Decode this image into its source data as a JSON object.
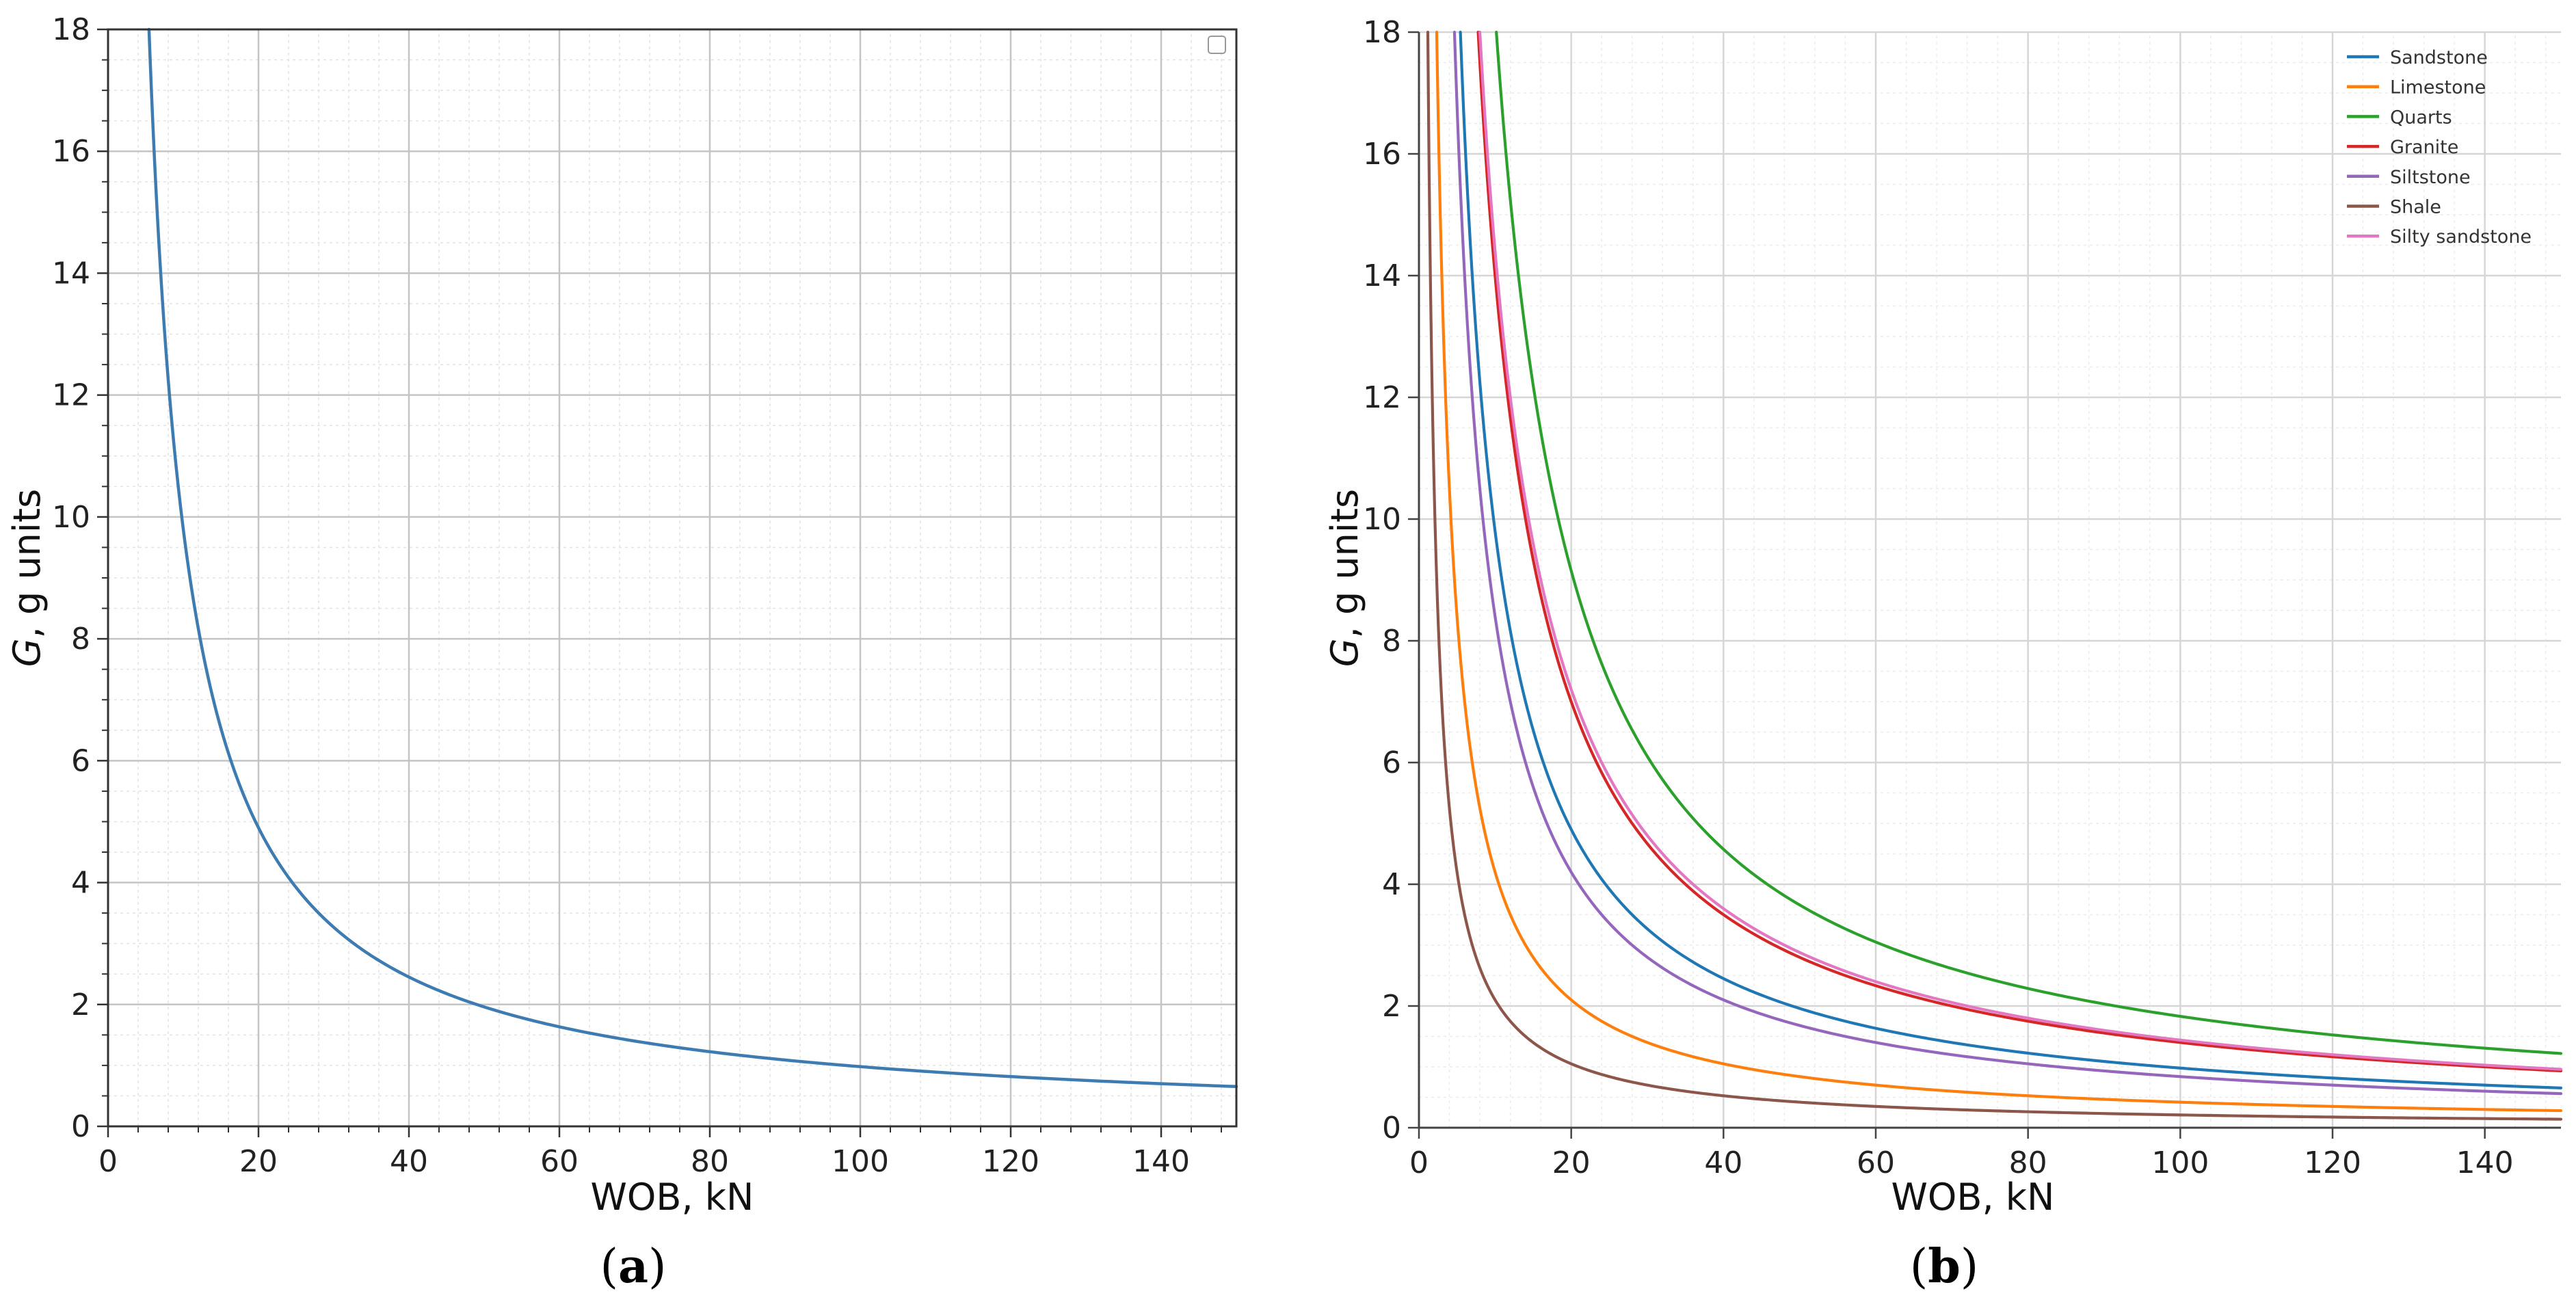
{
  "chart_data": [
    {
      "type": "line",
      "panel_label": "a",
      "title": "",
      "xlabel": "WOB, kN",
      "ylabel_italic": "G",
      "ylabel_rest": ", g units",
      "xlim": [
        0,
        150
      ],
      "ylim": [
        0,
        18
      ],
      "xticks": [
        0,
        20,
        40,
        60,
        80,
        100,
        120,
        140
      ],
      "yticks": [
        0,
        2,
        4,
        6,
        8,
        10,
        12,
        14,
        16,
        18
      ],
      "grid": true,
      "legend": "top-right (empty)",
      "series": [
        {
          "name": "",
          "color": "#3d7bb0",
          "k": 98,
          "points": [
            [
              5.4,
              18
            ],
            [
              6,
              16.3
            ],
            [
              7,
              14
            ],
            [
              8,
              12.25
            ],
            [
              10,
              9.8
            ],
            [
              12,
              8.17
            ],
            [
              15,
              6.53
            ],
            [
              20,
              4.9
            ],
            [
              25,
              3.92
            ],
            [
              30,
              3.27
            ],
            [
              40,
              2.45
            ],
            [
              50,
              1.96
            ],
            [
              60,
              1.63
            ],
            [
              80,
              1.23
            ],
            [
              100,
              0.98
            ],
            [
              120,
              0.82
            ],
            [
              150,
              0.65
            ]
          ]
        }
      ]
    },
    {
      "type": "line",
      "panel_label": "b",
      "title": "",
      "xlabel": "WOB, kN",
      "ylabel_italic": "G",
      "ylabel_rest": ", g units",
      "xlim": [
        0,
        150
      ],
      "ylim": [
        0,
        18
      ],
      "xticks": [
        0,
        20,
        40,
        60,
        80,
        100,
        120,
        140
      ],
      "yticks": [
        0,
        2,
        4,
        6,
        8,
        10,
        12,
        14,
        16,
        18
      ],
      "grid": true,
      "legend": "top-right",
      "series": [
        {
          "name": "Sandstone",
          "color": "#1f77b4",
          "k": 98,
          "points": [
            [
              5.4,
              18
            ],
            [
              10,
              9.8
            ],
            [
              20,
              4.9
            ],
            [
              40,
              2.45
            ],
            [
              60,
              1.63
            ],
            [
              80,
              1.23
            ],
            [
              100,
              0.98
            ],
            [
              150,
              0.65
            ]
          ]
        },
        {
          "name": "Limestone",
          "color": "#ff7f0e",
          "k": 42,
          "points": [
            [
              2.3,
              18
            ],
            [
              5,
              8.4
            ],
            [
              10,
              4.2
            ],
            [
              20,
              2.1
            ],
            [
              40,
              1.05
            ],
            [
              80,
              0.53
            ],
            [
              150,
              0.28
            ]
          ]
        },
        {
          "name": "Quarts",
          "color": "#2ca02c",
          "k": 183,
          "points": [
            [
              10.2,
              18
            ],
            [
              20,
              9.15
            ],
            [
              40,
              4.58
            ],
            [
              60,
              3.05
            ],
            [
              80,
              2.29
            ],
            [
              100,
              1.83
            ],
            [
              150,
              1.22
            ]
          ]
        },
        {
          "name": "Granite",
          "color": "#d62728",
          "k": 140,
          "points": [
            [
              7.8,
              18
            ],
            [
              10,
              14
            ],
            [
              20,
              7
            ],
            [
              40,
              3.5
            ],
            [
              60,
              2.33
            ],
            [
              80,
              1.75
            ],
            [
              100,
              1.4
            ],
            [
              150,
              0.93
            ]
          ]
        },
        {
          "name": "Siltstone",
          "color": "#9467bd",
          "k": 84,
          "points": [
            [
              4.7,
              18
            ],
            [
              10,
              8.4
            ],
            [
              20,
              4.2
            ],
            [
              40,
              2.1
            ],
            [
              60,
              1.4
            ],
            [
              80,
              1.05
            ],
            [
              100,
              0.84
            ],
            [
              150,
              0.56
            ]
          ]
        },
        {
          "name": "Shale",
          "color": "#8c564b",
          "k": 21,
          "points": [
            [
              1.2,
              18
            ],
            [
              2,
              10.5
            ],
            [
              5,
              4.2
            ],
            [
              10,
              2.1
            ],
            [
              20,
              1.05
            ],
            [
              40,
              0.53
            ],
            [
              80,
              0.26
            ],
            [
              150,
              0.14
            ]
          ]
        },
        {
          "name": "Silty sandstone",
          "color": "#e377c2",
          "k": 144,
          "points": [
            [
              8,
              18
            ],
            [
              10,
              14.4
            ],
            [
              20,
              7.2
            ],
            [
              40,
              3.6
            ],
            [
              60,
              2.4
            ],
            [
              80,
              1.8
            ],
            [
              100,
              1.44
            ],
            [
              150,
              0.96
            ]
          ]
        }
      ]
    }
  ]
}
